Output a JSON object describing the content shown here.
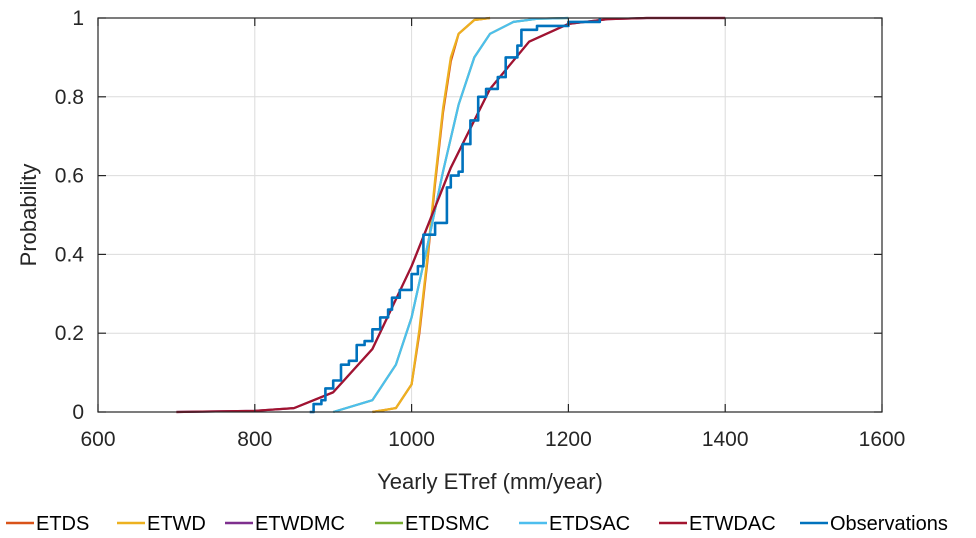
{
  "chart_data": {
    "type": "line",
    "title": "",
    "xlabel": "Yearly ETref (mm/year)",
    "ylabel": "Probability",
    "xlim": [
      600,
      1600
    ],
    "ylim": [
      0,
      1
    ],
    "xticks": [
      "600",
      "800",
      "1000",
      "1200",
      "1400",
      "1600"
    ],
    "yticks": [
      "0",
      "0.2",
      "0.4",
      "0.6",
      "0.8",
      "1"
    ],
    "grid": true,
    "legend_position": "bottom",
    "series": [
      {
        "name": "ETDS",
        "color": "#d95319",
        "x": [
          950,
          980,
          1000,
          1010,
          1020,
          1030,
          1040,
          1050,
          1060,
          1080,
          1100
        ],
        "y": [
          0,
          0.01,
          0.07,
          0.2,
          0.38,
          0.58,
          0.76,
          0.89,
          0.96,
          0.995,
          1
        ]
      },
      {
        "name": "ETWD",
        "color": "#edb120",
        "x": [
          950,
          980,
          1000,
          1010,
          1020,
          1030,
          1040,
          1050,
          1060,
          1080,
          1100
        ],
        "y": [
          0,
          0.01,
          0.07,
          0.21,
          0.39,
          0.59,
          0.77,
          0.9,
          0.96,
          0.995,
          1
        ]
      },
      {
        "name": "ETWDMC",
        "color": "#7e2f8e",
        "x": [
          700,
          800,
          850,
          900,
          950,
          1000,
          1020,
          1050,
          1100,
          1150,
          1200,
          1250,
          1300,
          1400
        ],
        "y": [
          0,
          0.003,
          0.01,
          0.05,
          0.16,
          0.37,
          0.47,
          0.62,
          0.82,
          0.94,
          0.985,
          0.997,
          1,
          1
        ]
      },
      {
        "name": "ETDSMC",
        "color": "#77ac30",
        "x": [
          900,
          950,
          980,
          1000,
          1020,
          1040,
          1060,
          1080,
          1100,
          1130,
          1160,
          1200
        ],
        "y": [
          0,
          0.03,
          0.12,
          0.24,
          0.42,
          0.61,
          0.78,
          0.9,
          0.96,
          0.99,
          0.998,
          1
        ]
      },
      {
        "name": "ETDSAC",
        "color": "#4dbeee",
        "x": [
          900,
          950,
          980,
          1000,
          1020,
          1040,
          1060,
          1080,
          1100,
          1130,
          1160,
          1200
        ],
        "y": [
          0,
          0.03,
          0.12,
          0.24,
          0.42,
          0.61,
          0.78,
          0.9,
          0.96,
          0.99,
          0.998,
          1
        ]
      },
      {
        "name": "ETWDAC",
        "color": "#a2142f",
        "x": [
          700,
          800,
          850,
          900,
          950,
          1000,
          1020,
          1050,
          1100,
          1150,
          1200,
          1250,
          1300,
          1400
        ],
        "y": [
          0,
          0.003,
          0.01,
          0.05,
          0.16,
          0.37,
          0.47,
          0.62,
          0.82,
          0.94,
          0.985,
          0.997,
          1,
          1
        ]
      },
      {
        "name": "Observations",
        "color": "#0072bd",
        "x": [
          870,
          875,
          885,
          890,
          900,
          910,
          920,
          930,
          940,
          950,
          960,
          970,
          975,
          985,
          1000,
          1008,
          1015,
          1030,
          1045,
          1050,
          1060,
          1065,
          1075,
          1085,
          1095,
          1100,
          1110,
          1120,
          1135,
          1140,
          1160,
          1200,
          1240
        ],
        "y": [
          0,
          0.02,
          0.03,
          0.06,
          0.08,
          0.12,
          0.13,
          0.17,
          0.18,
          0.21,
          0.24,
          0.26,
          0.29,
          0.31,
          0.35,
          0.37,
          0.45,
          0.48,
          0.57,
          0.6,
          0.61,
          0.68,
          0.74,
          0.8,
          0.82,
          0.82,
          0.85,
          0.9,
          0.93,
          0.97,
          0.98,
          0.99,
          1
        ]
      }
    ]
  }
}
